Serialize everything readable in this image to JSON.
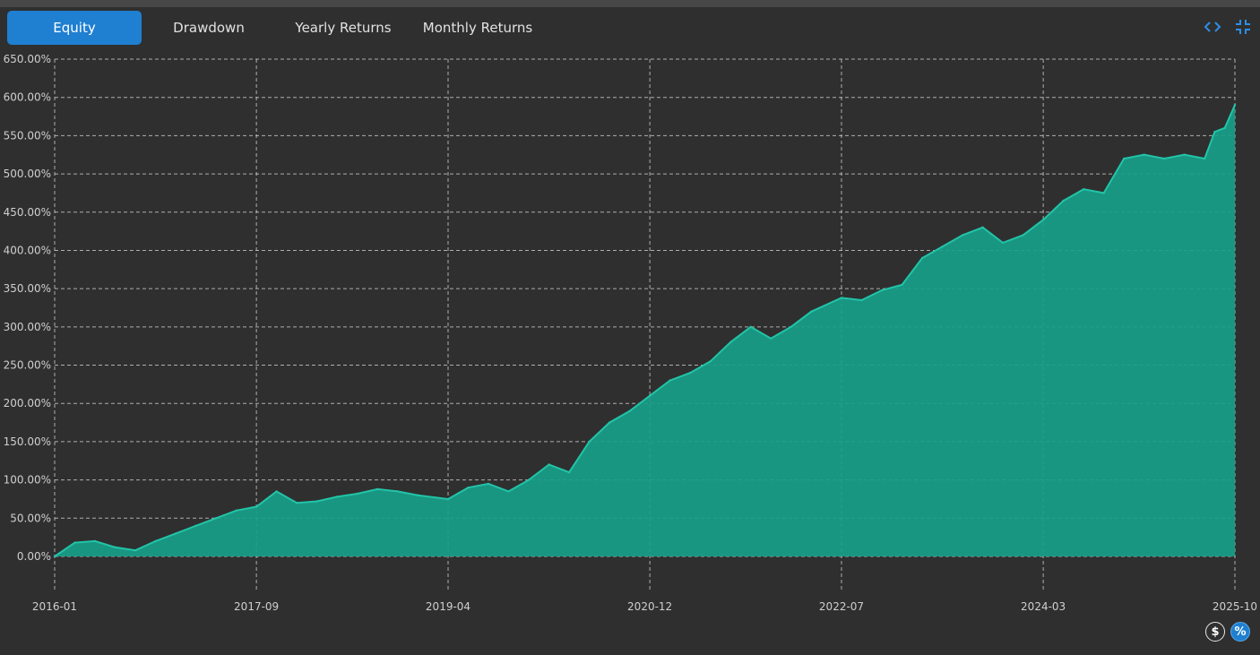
{
  "tabs": [
    {
      "label": "Equity",
      "active": true
    },
    {
      "label": "Drawdown",
      "active": false
    },
    {
      "label": "Yearly Returns",
      "active": false
    },
    {
      "label": "Monthly Returns",
      "active": false
    }
  ],
  "icons": {
    "expand": "code-brackets-icon",
    "collapse": "collapse-arrows-icon",
    "dollar_toggle": "$",
    "percent_toggle": "%"
  },
  "colors": {
    "background": "#2f2f2f",
    "active_tab": "#1f7fd1",
    "area_fill": "#17a089",
    "area_line": "#22c4a8",
    "grid": "#d9d9d9"
  },
  "chart_data": {
    "type": "area",
    "series": [
      {
        "x": [
          "2016-01",
          "2016-03",
          "2016-05",
          "2016-07",
          "2016-09",
          "2016-11",
          "2017-01",
          "2017-03",
          "2017-05",
          "2017-07",
          "2017-09",
          "2017-11",
          "2018-01",
          "2018-03",
          "2018-05",
          "2018-07",
          "2018-09",
          "2018-11",
          "2019-01",
          "2019-04",
          "2019-06",
          "2019-08",
          "2019-10",
          "2019-12",
          "2020-02",
          "2020-04",
          "2020-06",
          "2020-08",
          "2020-10",
          "2020-12",
          "2021-02",
          "2021-04",
          "2021-06",
          "2021-08",
          "2021-10",
          "2021-12",
          "2022-02",
          "2022-04",
          "2022-07",
          "2022-09",
          "2022-11",
          "2023-01",
          "2023-03",
          "2023-05",
          "2023-07",
          "2023-09",
          "2023-11",
          "2024-01",
          "2024-03",
          "2024-05",
          "2024-07",
          "2024-09",
          "2024-11",
          "2025-01",
          "2025-03",
          "2025-05",
          "2025-07",
          "2025-08",
          "2025-09",
          "2025-10"
        ],
        "values": [
          0,
          18,
          20,
          12,
          8,
          20,
          30,
          40,
          50,
          60,
          65,
          85,
          70,
          72,
          78,
          82,
          88,
          85,
          80,
          75,
          90,
          95,
          85,
          100,
          120,
          110,
          150,
          175,
          190,
          210,
          230,
          240,
          255,
          280,
          300,
          285,
          300,
          320,
          338,
          335,
          348,
          355,
          390,
          405,
          420,
          430,
          410,
          420,
          440,
          465,
          480,
          475,
          520,
          525,
          520,
          525,
          520,
          555,
          560,
          590
        ]
      }
    ],
    "x_ticks": [
      "2016-01",
      "2017-09",
      "2019-04",
      "2020-12",
      "2022-07",
      "2024-03",
      "2025-10"
    ],
    "y_ticks": [
      "0.00%",
      "50.00%",
      "100.00%",
      "150.00%",
      "200.00%",
      "250.00%",
      "300.00%",
      "350.00%",
      "400.00%",
      "450.00%",
      "500.00%",
      "550.00%",
      "600.00%",
      "650.00%"
    ],
    "ylim": [
      0,
      650
    ],
    "grid": true,
    "legend": "none"
  }
}
